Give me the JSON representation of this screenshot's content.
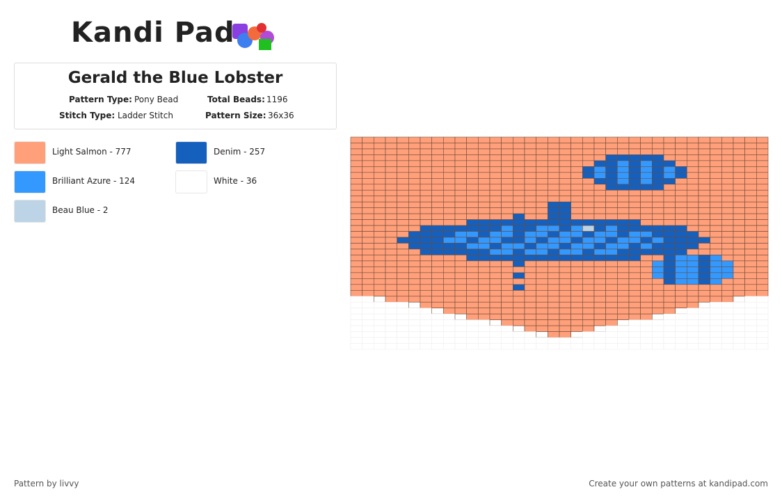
{
  "header": {
    "logo": "Kandi Pad"
  },
  "pattern": {
    "title": "Gerald the Blue Lobster",
    "type_label": "Pattern Type:",
    "type": "Pony Bead",
    "beads_label": "Total Beads:",
    "beads": "1196",
    "stitch_label": "Stitch Type:",
    "stitch": "Ladder Stitch",
    "size_label": "Pattern Size:",
    "size": "36x36"
  },
  "legend": [
    {
      "label": "Light Salmon - 777",
      "color": "#ffa07a"
    },
    {
      "label": "Denim - 257",
      "color": "#1560bd"
    },
    {
      "label": "Brilliant Azure - 124",
      "color": "#3399ff"
    },
    {
      "label": "White - 36",
      "color": "#ffffff"
    },
    {
      "label": "Beau Blue - 2",
      "color": "#bcd4e6"
    }
  ],
  "footer": {
    "left": "Pattern by livvy",
    "right": "Create your own patterns at kandipad.com"
  }
}
